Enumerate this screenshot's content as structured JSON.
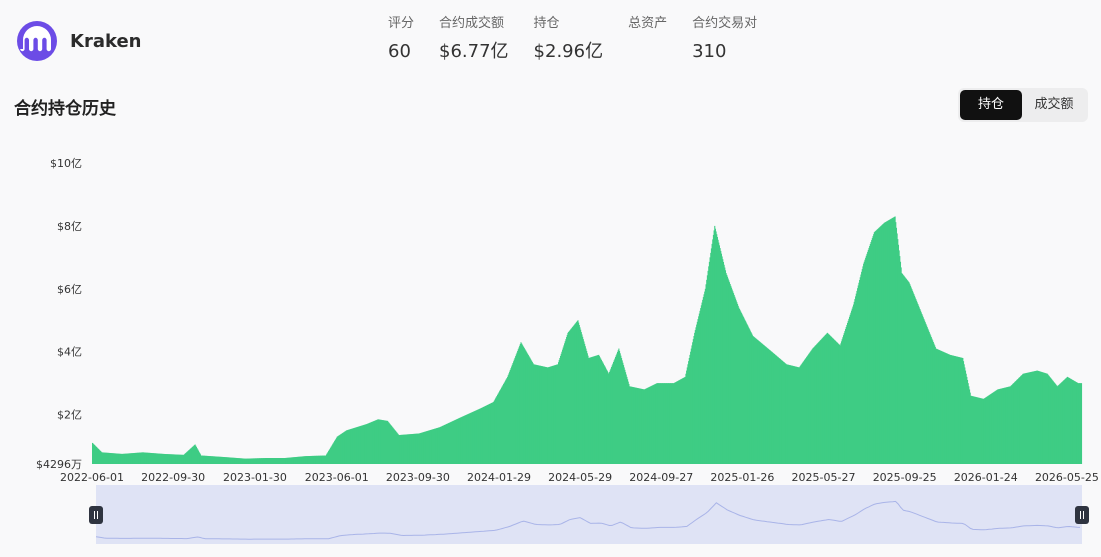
{
  "exchange": {
    "name": "Kraken",
    "logo_icon": "kraken-logo-icon",
    "brand_color": "#6c4ce6"
  },
  "stats": [
    {
      "label": "评分",
      "value": "60"
    },
    {
      "label": "合约成交额",
      "value": "$6.77亿"
    },
    {
      "label": "持仓",
      "value": "$2.96亿"
    },
    {
      "label": "总资产",
      "value": ""
    },
    {
      "label": "合约交易对",
      "value": "310"
    }
  ],
  "section_title": "合约持仓历史",
  "toggle": {
    "active_label": "持仓",
    "inactive_label": "成交额"
  },
  "chart_data": {
    "type": "bar",
    "title": "",
    "xlabel": "",
    "ylabel": "",
    "color": "#3ecc84",
    "y_ticks": [
      "$4296万",
      "$2亿",
      "$4亿",
      "$6亿",
      "$8亿",
      "$10亿"
    ],
    "y_tick_values": [
      0.4296,
      2,
      4,
      6,
      8,
      10
    ],
    "ylim": [
      0.4296,
      10
    ],
    "x_ticks": [
      "2022-06-01",
      "2022-09-30",
      "2023-01-30",
      "2023-06-01",
      "2023-09-30",
      "2024-01-29",
      "2024-05-29",
      "2024-09-27",
      "2025-01-26",
      "2025-05-27",
      "2025-09-25",
      "2026-01-24",
      "2026-05-25"
    ],
    "x_range": [
      "2022-06-01",
      "2026-06-15"
    ],
    "series": [
      {
        "unit": "亿 USD",
        "points": [
          [
            "2022-06-01",
            1.1
          ],
          [
            "2022-06-15",
            0.8
          ],
          [
            "2022-07-15",
            0.75
          ],
          [
            "2022-08-15",
            0.8
          ],
          [
            "2022-09-15",
            0.75
          ],
          [
            "2022-10-15",
            0.72
          ],
          [
            "2022-11-01",
            1.05
          ],
          [
            "2022-11-10",
            0.7
          ],
          [
            "2022-12-15",
            0.65
          ],
          [
            "2023-01-15",
            0.6
          ],
          [
            "2023-02-15",
            0.62
          ],
          [
            "2023-03-15",
            0.62
          ],
          [
            "2023-04-15",
            0.68
          ],
          [
            "2023-05-15",
            0.7
          ],
          [
            "2023-06-01",
            1.3
          ],
          [
            "2023-06-15",
            1.5
          ],
          [
            "2023-07-15",
            1.7
          ],
          [
            "2023-08-01",
            1.85
          ],
          [
            "2023-08-15",
            1.8
          ],
          [
            "2023-09-01",
            1.35
          ],
          [
            "2023-10-01",
            1.4
          ],
          [
            "2023-11-01",
            1.6
          ],
          [
            "2023-12-01",
            1.9
          ],
          [
            "2024-01-01",
            2.2
          ],
          [
            "2024-01-20",
            2.4
          ],
          [
            "2024-02-10",
            3.2
          ],
          [
            "2024-03-01",
            4.3
          ],
          [
            "2024-03-20",
            3.6
          ],
          [
            "2024-04-10",
            3.5
          ],
          [
            "2024-04-25",
            3.6
          ],
          [
            "2024-05-10",
            4.6
          ],
          [
            "2024-05-25",
            5.0
          ],
          [
            "2024-06-10",
            3.8
          ],
          [
            "2024-06-25",
            3.9
          ],
          [
            "2024-07-10",
            3.3
          ],
          [
            "2024-07-25",
            4.1
          ],
          [
            "2024-08-10",
            2.9
          ],
          [
            "2024-09-01",
            2.8
          ],
          [
            "2024-09-20",
            3.0
          ],
          [
            "2024-10-15",
            3.0
          ],
          [
            "2024-11-01",
            3.2
          ],
          [
            "2024-11-15",
            4.6
          ],
          [
            "2024-12-01",
            6.0
          ],
          [
            "2024-12-15",
            8.0
          ],
          [
            "2025-01-01",
            6.5
          ],
          [
            "2025-01-20",
            5.4
          ],
          [
            "2025-02-10",
            4.5
          ],
          [
            "2025-03-10",
            4.0
          ],
          [
            "2025-04-01",
            3.6
          ],
          [
            "2025-04-20",
            3.5
          ],
          [
            "2025-05-10",
            4.1
          ],
          [
            "2025-06-01",
            4.6
          ],
          [
            "2025-06-20",
            4.2
          ],
          [
            "2025-07-10",
            5.5
          ],
          [
            "2025-07-25",
            6.8
          ],
          [
            "2025-08-10",
            7.8
          ],
          [
            "2025-08-25",
            8.1
          ],
          [
            "2025-09-10",
            8.3
          ],
          [
            "2025-09-20",
            6.5
          ],
          [
            "2025-10-01",
            6.2
          ],
          [
            "2025-10-20",
            5.2
          ],
          [
            "2025-11-10",
            4.1
          ],
          [
            "2025-12-01",
            3.9
          ],
          [
            "2025-12-20",
            3.8
          ],
          [
            "2026-01-01",
            2.6
          ],
          [
            "2026-01-20",
            2.5
          ],
          [
            "2026-02-10",
            2.8
          ],
          [
            "2026-03-01",
            2.9
          ],
          [
            "2026-03-20",
            3.3
          ],
          [
            "2026-04-10",
            3.4
          ],
          [
            "2026-04-25",
            3.3
          ],
          [
            "2026-05-10",
            2.9
          ],
          [
            "2026-05-25",
            3.2
          ],
          [
            "2026-06-10",
            3.0
          ],
          [
            "2026-06-15",
            3.0
          ]
        ]
      }
    ],
    "grid": false,
    "legend": "none",
    "range_slider": {
      "handle_icon": "drag-handle-icon",
      "fill_color": "#dfe3f5"
    }
  }
}
